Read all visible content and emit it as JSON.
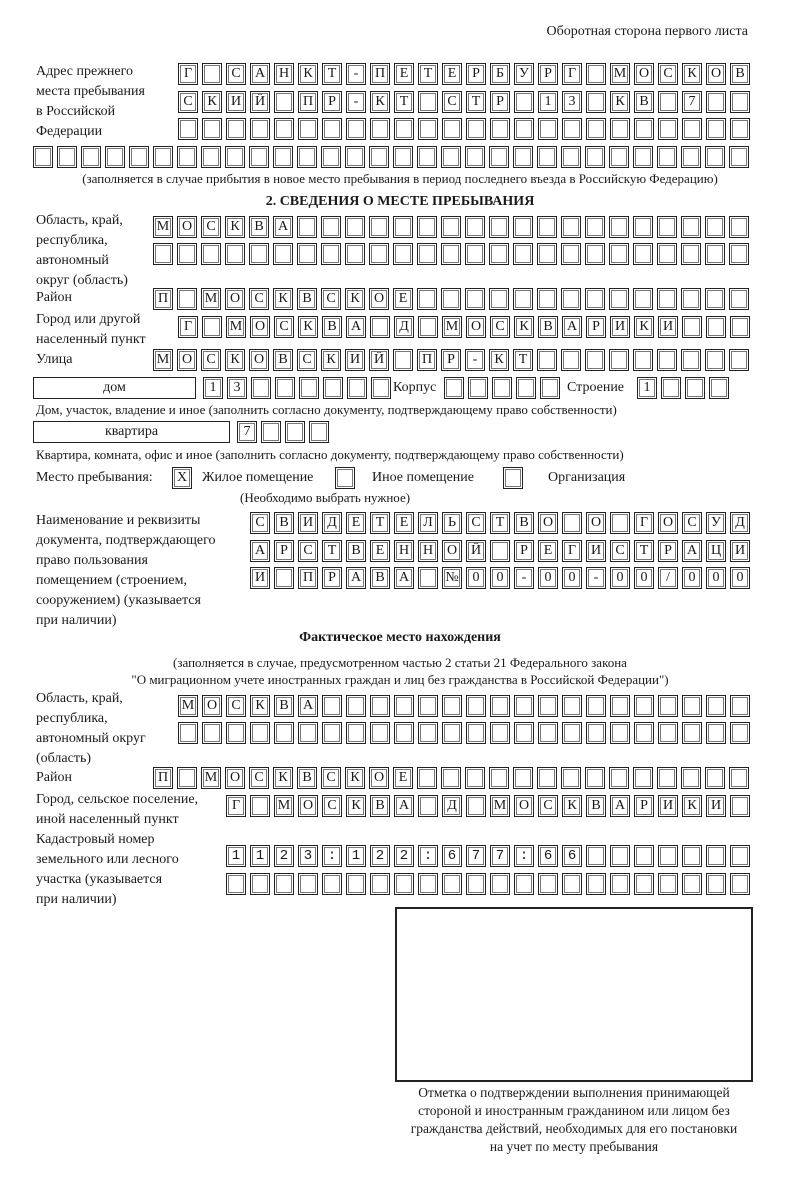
{
  "header": {
    "page_side": "Оборотная сторона первого листа"
  },
  "previous_address": {
    "label": [
      "Адрес прежнего",
      "места пребывания",
      "в Российской",
      "Федерации"
    ],
    "lines": [
      "Г САНКТ-ПЕТЕРБУРГ МОСКОВ",
      "СКИЙ ПР-КТ СТР 13 КВ 7",
      "",
      ""
    ],
    "note": "(заполняется в случае прибытия в новое место пребывания в период последнего въезда в Российскую Федерацию)"
  },
  "stay_place": {
    "heading": "2. СВЕДЕНИЯ О МЕСТЕ ПРЕБЫВАНИЯ",
    "region_label": [
      "Область, край,",
      "республика,",
      "автономный",
      "округ (область)"
    ],
    "region_lines": [
      "МОСКВА",
      ""
    ],
    "district_label": "Район",
    "district": "П МОСКВСКОЕ",
    "city_label": [
      "Город или другой",
      "населенный пункт"
    ],
    "city": "Г МОСКВА Д МОСКВАРИКИ",
    "street_label": "Улица",
    "street": "МОСКОВСКИЙ ПР-КТ",
    "house_type": "дом",
    "house_number": "13",
    "building_label": "Корпус",
    "building": "",
    "structure_label": "Строение",
    "structure": "1",
    "house_note": "Дом, участок, владение и иное (заполнить согласно документу, подтверждающему право собственности)",
    "apartment_type": "квартира",
    "apartment_number": "7",
    "apartment_note": "Квартира, комната, офис и иное (заполнить согласно документу, подтверждающему право собственности)",
    "place_label": "Место пребывания:",
    "place_options": [
      {
        "label": "Жилое помещение",
        "mark": "X",
        "checked": true
      },
      {
        "label": "Иное помещение",
        "mark": "",
        "checked": false
      },
      {
        "label": "Организация",
        "mark": "",
        "checked": false
      }
    ],
    "place_note": "(Необходимо выбрать нужное)",
    "document_label": [
      "Наименование и реквизиты",
      "документа, подтверждающего",
      "право пользования",
      "помещением (строением,",
      "сооружением) (указывается",
      "при наличии)"
    ],
    "document_lines": [
      "СВИДЕТЕЛЬСТВО О ГОСУД",
      "АРСТВЕННОЙ РЕГИСТРАЦИ",
      "И ПРАВА №00-00-00/000"
    ]
  },
  "actual_place": {
    "heading": "Фактическое место нахождения",
    "note": [
      "(заполняется в случае, предусмотренном частью 2 статьи 21 Федерального закона",
      "\"О миграционном учете иностранных граждан и лиц без гражданства в Российской Федерации\")"
    ],
    "region_label": [
      "Область, край,",
      "республика,",
      "автономный округ",
      "(область)"
    ],
    "region_lines": [
      "МОСКВА",
      ""
    ],
    "district_label": "Район",
    "district": "П МОСКВСКОЕ",
    "city_label": [
      "Город, сельское поселение,",
      "иной населенный пункт"
    ],
    "city": "Г МОСКВА Д МОСКВАРИКИ",
    "cadastral_label": [
      "Кадастровый номер",
      "земельного или лесного",
      "участка (указывается",
      "при наличии)"
    ],
    "cadastral_lines": [
      "1123:122:677:66",
      ""
    ]
  },
  "confirmation": {
    "caption": [
      "Отметка о подтверждении выполнения принимающей",
      "стороной и иностранным гражданином или лицом без",
      "гражданства действий, необходимых для его постановки",
      "на учет по месту пребывания"
    ]
  }
}
